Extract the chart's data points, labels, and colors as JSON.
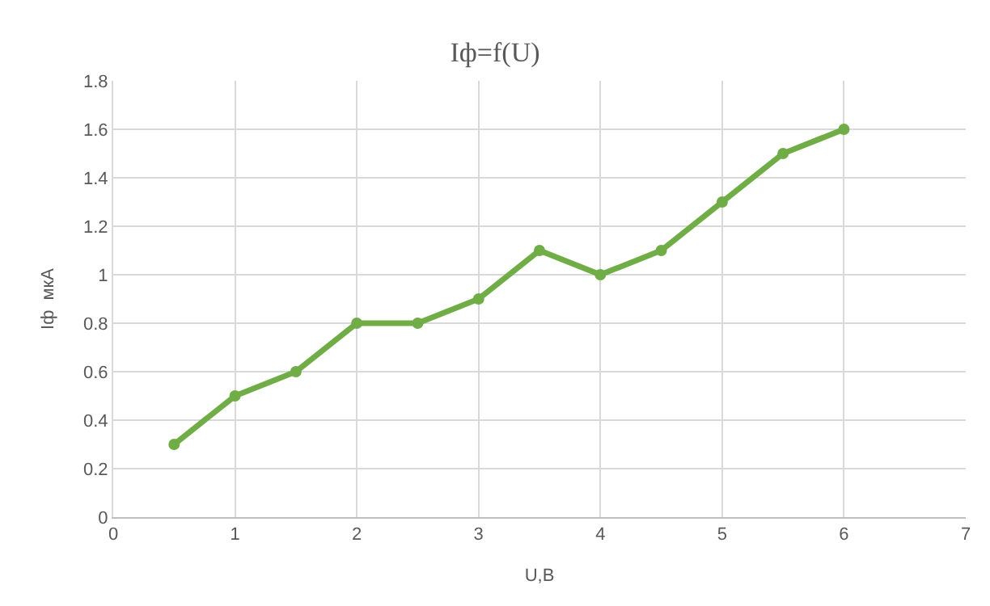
{
  "chart_data": {
    "type": "line",
    "title": "Iф=f(U)",
    "xlabel": "U,В",
    "ylabel": "Iф  мкА",
    "x": [
      0.5,
      1,
      1.5,
      2,
      2.5,
      3,
      3.5,
      4,
      4.5,
      5,
      5.5,
      6
    ],
    "series": [
      {
        "color": "#70ad47",
        "values": [
          0.3,
          0.5,
          0.6,
          0.8,
          0.8,
          0.9,
          1.1,
          1.0,
          1.1,
          1.3,
          1.5,
          1.6
        ]
      }
    ],
    "xlim": [
      0,
      7
    ],
    "xticks": [
      0,
      1,
      2,
      3,
      4,
      5,
      6,
      7
    ],
    "ylim": [
      0,
      1.8
    ],
    "yticks": [
      0,
      0.2,
      0.4,
      0.6,
      0.8,
      1,
      1.2,
      1.4,
      1.6,
      1.8
    ],
    "grid": true,
    "marker": "circle",
    "line_style": "solid",
    "legend": false
  }
}
